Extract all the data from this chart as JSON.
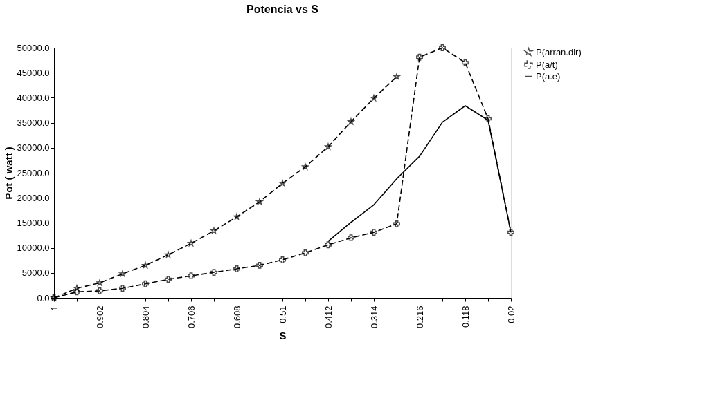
{
  "chart_data": {
    "type": "line",
    "title": "Potencia vs S",
    "xlabel": "S",
    "ylabel": "Pot ( watt )",
    "categories": [
      "1",
      null,
      "0.902",
      null,
      "0.804",
      null,
      "0.706",
      null,
      "0.608",
      null,
      "0.51",
      null,
      "0.412",
      null,
      "0.314",
      null,
      "0.216",
      null,
      "0.118",
      null,
      "0.02"
    ],
    "series": [
      {
        "name": "P(arran.dir)",
        "color": "#000000",
        "marker": "star",
        "line_style": "dashed",
        "values": [
          0,
          1900,
          3000,
          4800,
          6500,
          8600,
          10900,
          13400,
          16200,
          19200,
          22900,
          26200,
          30200,
          35200,
          39900,
          44200,
          null,
          null,
          null,
          null,
          null
        ]
      },
      {
        "name": "P(a/t)",
        "color": "#000000",
        "marker": "cross",
        "line_style": "dashed",
        "values": [
          0,
          1200,
          1400,
          1900,
          2800,
          3700,
          4400,
          5100,
          5800,
          6500,
          7600,
          9000,
          10600,
          12000,
          13100,
          14800,
          48100,
          50000,
          47000,
          35800,
          13100
        ]
      },
      {
        "name": "P(a.e)",
        "color": "#000000",
        "marker": "none",
        "line_style": "solid",
        "values": [
          null,
          null,
          null,
          null,
          null,
          null,
          null,
          null,
          null,
          null,
          null,
          null,
          11300,
          15100,
          18600,
          23800,
          28300,
          35100,
          38400,
          35500,
          13100
        ]
      }
    ],
    "ylim": [
      0,
      50000
    ],
    "yticks": [
      {
        "value": 0,
        "label": "0.0"
      },
      {
        "value": 5000,
        "label": "5000.0"
      },
      {
        "value": 10000,
        "label": "10000.0"
      },
      {
        "value": 15000,
        "label": "15000.0"
      },
      {
        "value": 20000,
        "label": "20000.0"
      },
      {
        "value": 25000,
        "label": "25000.0"
      },
      {
        "value": 30000,
        "label": "30000.0"
      },
      {
        "value": 35000,
        "label": "35000.0"
      },
      {
        "value": 40000,
        "label": "40000.0"
      },
      {
        "value": 45000,
        "label": "45000.0"
      },
      {
        "value": 50000,
        "label": "50000.0"
      }
    ],
    "grid": false,
    "legend": "right"
  }
}
